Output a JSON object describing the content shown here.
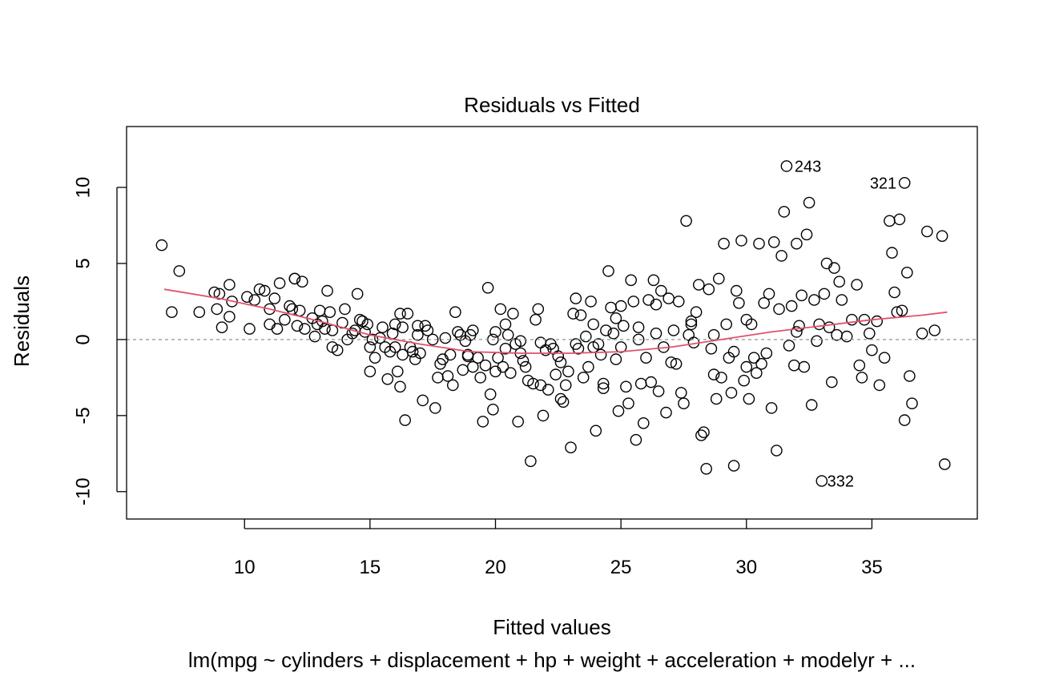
{
  "chart_data": {
    "type": "scatter",
    "title": "Residuals vs Fitted",
    "xlabel": "Fitted values",
    "ylabel": "Residuals",
    "subtitle": "lm(mpg ~ cylinders + displacement + hp + weight + acceleration + modelyr +  ...",
    "xlim": [
      5.3,
      39.2
    ],
    "ylim": [
      -11.8,
      14.0
    ],
    "x_ticks": [
      10,
      15,
      20,
      25,
      30,
      35
    ],
    "y_ticks": [
      -10,
      -5,
      0,
      5,
      10
    ],
    "zero_line": {
      "y": 0,
      "style": "dotted",
      "color": "#9a9a9a"
    },
    "smoother": {
      "color": "#df536b",
      "points": [
        [
          6.8,
          3.3
        ],
        [
          9,
          2.7
        ],
        [
          11,
          2.0
        ],
        [
          13,
          1.2
        ],
        [
          15,
          0.3
        ],
        [
          17,
          -0.3
        ],
        [
          19,
          -0.8
        ],
        [
          21,
          -0.9
        ],
        [
          23,
          -0.9
        ],
        [
          25,
          -0.8
        ],
        [
          27,
          -0.5
        ],
        [
          29,
          0.0
        ],
        [
          31,
          0.5
        ],
        [
          33,
          0.9
        ],
        [
          35,
          1.3
        ],
        [
          37,
          1.6
        ],
        [
          38,
          1.8
        ]
      ]
    },
    "labeled_points": [
      {
        "label": "243",
        "x": 31.6,
        "y": 11.4,
        "side": "right"
      },
      {
        "label": "321",
        "x": 36.3,
        "y": 10.3,
        "side": "left"
      },
      {
        "label": "332",
        "x": 32.9,
        "y": -9.3,
        "side": "right"
      }
    ],
    "points": [
      [
        6.7,
        6.2
      ],
      [
        7.1,
        1.8
      ],
      [
        7.4,
        4.5
      ],
      [
        8.2,
        1.8
      ],
      [
        8.8,
        3.1
      ],
      [
        8.9,
        2.0
      ],
      [
        9.0,
        3.0
      ],
      [
        9.1,
        0.8
      ],
      [
        9.4,
        3.6
      ],
      [
        9.4,
        1.5
      ],
      [
        9.5,
        2.5
      ],
      [
        10.1,
        2.8
      ],
      [
        10.2,
        0.7
      ],
      [
        10.4,
        2.6
      ],
      [
        10.6,
        3.3
      ],
      [
        10.8,
        3.2
      ],
      [
        11.0,
        2.0
      ],
      [
        11.0,
        1.0
      ],
      [
        11.2,
        2.7
      ],
      [
        11.3,
        0.7
      ],
      [
        11.4,
        3.7
      ],
      [
        11.6,
        1.3
      ],
      [
        11.8,
        2.2
      ],
      [
        11.9,
        2.0
      ],
      [
        12.0,
        4.0
      ],
      [
        12.0,
        4.0
      ],
      [
        12.1,
        0.9
      ],
      [
        12.2,
        1.9
      ],
      [
        12.3,
        3.8
      ],
      [
        12.4,
        0.7
      ],
      [
        12.7,
        1.4
      ],
      [
        12.8,
        0.2
      ],
      [
        12.9,
        1.0
      ],
      [
        13.0,
        1.9
      ],
      [
        13.1,
        1.2
      ],
      [
        13.2,
        0.7
      ],
      [
        13.3,
        3.2
      ],
      [
        13.4,
        1.8
      ],
      [
        13.5,
        0.6
      ],
      [
        13.5,
        -0.5
      ],
      [
        13.7,
        -0.7
      ],
      [
        13.9,
        1.1
      ],
      [
        14.0,
        2.0
      ],
      [
        14.1,
        0.0
      ],
      [
        14.3,
        0.4
      ],
      [
        14.4,
        0.6
      ],
      [
        14.5,
        3.0
      ],
      [
        14.6,
        1.3
      ],
      [
        14.8,
        0.5
      ],
      [
        14.9,
        1.0
      ],
      [
        15.0,
        -0.5
      ],
      [
        15.0,
        -2.1
      ],
      [
        15.1,
        0.0
      ],
      [
        15.2,
        -1.2
      ],
      [
        15.4,
        0.1
      ],
      [
        15.6,
        -0.5
      ],
      [
        15.7,
        -2.6
      ],
      [
        15.8,
        -0.8
      ],
      [
        15.9,
        0.4
      ],
      [
        16.0,
        1.0
      ],
      [
        16.0,
        -0.5
      ],
      [
        16.1,
        -2.1
      ],
      [
        16.2,
        -3.1
      ],
      [
        16.2,
        1.7
      ],
      [
        16.3,
        -1.0
      ],
      [
        16.3,
        0.8
      ],
      [
        16.4,
        -5.3
      ],
      [
        16.5,
        1.7
      ],
      [
        16.6,
        -0.5
      ],
      [
        16.7,
        -0.8
      ],
      [
        16.8,
        -1.3
      ],
      [
        16.9,
        0.9
      ],
      [
        17.0,
        -0.9
      ],
      [
        17.1,
        -4.0
      ],
      [
        17.2,
        0.9
      ],
      [
        17.3,
        0.6
      ],
      [
        17.6,
        -4.5
      ],
      [
        17.7,
        -2.5
      ],
      [
        17.8,
        -1.6
      ],
      [
        17.9,
        -1.3
      ],
      [
        18.0,
        0.1
      ],
      [
        18.1,
        -2.4
      ],
      [
        18.2,
        -1.0
      ],
      [
        18.3,
        -3.0
      ],
      [
        18.4,
        1.8
      ],
      [
        18.5,
        0.5
      ],
      [
        18.6,
        0.3
      ],
      [
        18.7,
        -2.0
      ],
      [
        18.8,
        -0.1
      ],
      [
        18.9,
        -1.0
      ],
      [
        19.0,
        0.3
      ],
      [
        19.1,
        -1.8
      ],
      [
        19.1,
        0.6
      ],
      [
        19.3,
        -1.2
      ],
      [
        19.4,
        -2.5
      ],
      [
        19.5,
        -5.4
      ],
      [
        19.6,
        -1.7
      ],
      [
        19.7,
        3.4
      ],
      [
        19.8,
        -3.6
      ],
      [
        19.9,
        -4.6
      ],
      [
        20.0,
        -2.1
      ],
      [
        20.0,
        0.5
      ],
      [
        20.1,
        -1.2
      ],
      [
        20.2,
        2.0
      ],
      [
        20.3,
        -1.8
      ],
      [
        20.4,
        -0.6
      ],
      [
        20.5,
        0.3
      ],
      [
        20.6,
        -2.2
      ],
      [
        20.7,
        1.7
      ],
      [
        20.8,
        -0.3
      ],
      [
        20.9,
        -5.4
      ],
      [
        21.0,
        -0.1
      ],
      [
        21.1,
        -1.4
      ],
      [
        21.2,
        -1.8
      ],
      [
        21.3,
        -2.7
      ],
      [
        21.4,
        -8.0
      ],
      [
        21.5,
        -2.9
      ],
      [
        21.6,
        1.3
      ],
      [
        21.7,
        2.0
      ],
      [
        21.8,
        -3.0
      ],
      [
        21.9,
        -5.0
      ],
      [
        22.0,
        -0.7
      ],
      [
        22.1,
        -3.3
      ],
      [
        22.2,
        -0.3
      ],
      [
        22.3,
        -0.6
      ],
      [
        22.4,
        -2.3
      ],
      [
        22.5,
        -1.1
      ],
      [
        22.6,
        -3.9
      ],
      [
        22.7,
        -4.1
      ],
      [
        22.8,
        -3.0
      ],
      [
        22.9,
        -2.1
      ],
      [
        23.0,
        -7.1
      ],
      [
        23.1,
        1.7
      ],
      [
        23.2,
        2.7
      ],
      [
        23.3,
        -0.6
      ],
      [
        23.4,
        1.6
      ],
      [
        23.5,
        -2.5
      ],
      [
        23.6,
        0.2
      ],
      [
        23.7,
        -1.8
      ],
      [
        23.8,
        2.5
      ],
      [
        23.9,
        -0.5
      ],
      [
        24.0,
        -6.0
      ],
      [
        24.1,
        -0.3
      ],
      [
        24.2,
        -1.0
      ],
      [
        24.3,
        -3.2
      ],
      [
        24.4,
        0.6
      ],
      [
        24.5,
        4.5
      ],
      [
        24.6,
        2.1
      ],
      [
        24.7,
        0.4
      ],
      [
        24.8,
        1.4
      ],
      [
        24.9,
        -4.7
      ],
      [
        25.0,
        2.2
      ],
      [
        25.1,
        0.9
      ],
      [
        25.2,
        -3.1
      ],
      [
        25.3,
        -4.2
      ],
      [
        25.4,
        3.9
      ],
      [
        25.5,
        2.5
      ],
      [
        25.6,
        -6.6
      ],
      [
        25.7,
        0.8
      ],
      [
        25.8,
        -2.9
      ],
      [
        25.9,
        -5.5
      ],
      [
        26.0,
        -1.2
      ],
      [
        26.1,
        2.6
      ],
      [
        26.2,
        -2.8
      ],
      [
        26.3,
        3.9
      ],
      [
        26.4,
        2.3
      ],
      [
        26.5,
        -3.4
      ],
      [
        26.6,
        3.2
      ],
      [
        26.7,
        -0.5
      ],
      [
        26.8,
        -4.8
      ],
      [
        26.9,
        2.7
      ],
      [
        27.0,
        -1.5
      ],
      [
        27.1,
        0.6
      ],
      [
        27.2,
        -1.6
      ],
      [
        27.3,
        2.5
      ],
      [
        27.4,
        -3.5
      ],
      [
        27.5,
        -4.2
      ],
      [
        27.6,
        7.8
      ],
      [
        27.7,
        0.3
      ],
      [
        27.8,
        1.0
      ],
      [
        27.9,
        -0.2
      ],
      [
        28.0,
        1.8
      ],
      [
        28.1,
        3.6
      ],
      [
        28.2,
        -6.3
      ],
      [
        28.3,
        -6.1
      ],
      [
        28.4,
        -8.5
      ],
      [
        28.5,
        3.3
      ],
      [
        28.6,
        -0.6
      ],
      [
        28.7,
        0.3
      ],
      [
        28.8,
        -3.9
      ],
      [
        28.9,
        4.0
      ],
      [
        29.0,
        -2.5
      ],
      [
        29.1,
        6.3
      ],
      [
        29.2,
        1.0
      ],
      [
        29.3,
        -1.2
      ],
      [
        29.4,
        -3.5
      ],
      [
        29.5,
        -8.3
      ],
      [
        29.6,
        3.2
      ],
      [
        29.7,
        2.4
      ],
      [
        29.8,
        6.5
      ],
      [
        29.9,
        -2.7
      ],
      [
        30.0,
        1.3
      ],
      [
        30.1,
        -3.9
      ],
      [
        30.2,
        1.0
      ],
      [
        30.3,
        -1.2
      ],
      [
        30.4,
        -2.2
      ],
      [
        30.5,
        6.3
      ],
      [
        30.6,
        -1.6
      ],
      [
        30.7,
        2.4
      ],
      [
        30.8,
        -0.9
      ],
      [
        30.9,
        3.0
      ],
      [
        31.0,
        -4.5
      ],
      [
        31.1,
        6.4
      ],
      [
        31.2,
        -7.3
      ],
      [
        31.3,
        2.0
      ],
      [
        31.4,
        5.5
      ],
      [
        31.5,
        8.4
      ],
      [
        31.6,
        11.4
      ],
      [
        31.7,
        -0.4
      ],
      [
        31.8,
        2.2
      ],
      [
        31.9,
        -1.7
      ],
      [
        32.0,
        6.3
      ],
      [
        32.1,
        0.9
      ],
      [
        32.2,
        2.9
      ],
      [
        32.3,
        -1.8
      ],
      [
        32.4,
        6.9
      ],
      [
        32.5,
        9.0
      ],
      [
        32.6,
        -4.3
      ],
      [
        32.7,
        2.6
      ],
      [
        32.8,
        -0.1
      ],
      [
        32.9,
        1.0
      ],
      [
        33.0,
        -9.3
      ],
      [
        33.1,
        3.0
      ],
      [
        33.2,
        5.0
      ],
      [
        33.3,
        0.8
      ],
      [
        33.4,
        -2.8
      ],
      [
        33.5,
        4.7
      ],
      [
        33.6,
        0.3
      ],
      [
        33.7,
        3.8
      ],
      [
        33.8,
        2.6
      ],
      [
        34.0,
        0.2
      ],
      [
        34.2,
        1.3
      ],
      [
        34.4,
        3.6
      ],
      [
        34.5,
        -1.7
      ],
      [
        34.6,
        -2.5
      ],
      [
        34.7,
        1.3
      ],
      [
        34.9,
        0.4
      ],
      [
        35.0,
        -0.7
      ],
      [
        35.2,
        1.2
      ],
      [
        35.3,
        -3.0
      ],
      [
        35.5,
        -1.2
      ],
      [
        35.7,
        7.8
      ],
      [
        35.8,
        5.7
      ],
      [
        35.9,
        3.1
      ],
      [
        36.0,
        1.8
      ],
      [
        36.1,
        7.9
      ],
      [
        36.2,
        1.9
      ],
      [
        36.3,
        10.3
      ],
      [
        36.3,
        -5.3
      ],
      [
        36.4,
        4.4
      ],
      [
        36.5,
        -2.4
      ],
      [
        36.6,
        -4.2
      ],
      [
        37.0,
        0.4
      ],
      [
        37.2,
        7.1
      ],
      [
        37.5,
        0.6
      ],
      [
        37.8,
        6.8
      ],
      [
        37.9,
        -8.2
      ],
      [
        24.3,
        -2.9
      ],
      [
        25.0,
        -0.5
      ],
      [
        21.8,
        -0.2
      ],
      [
        17.5,
        0.0
      ],
      [
        26.4,
        0.4
      ],
      [
        28.7,
        -2.3
      ],
      [
        30.0,
        -1.8
      ],
      [
        23.2,
        -0.3
      ],
      [
        19.9,
        0.0
      ],
      [
        22.6,
        -1.5
      ],
      [
        27.8,
        1.2
      ],
      [
        24.8,
        -1.3
      ],
      [
        16.9,
        0.3
      ],
      [
        20.4,
        1.0
      ],
      [
        29.5,
        -0.8
      ],
      [
        32.0,
        0.5
      ],
      [
        18.9,
        -1.1
      ],
      [
        21.0,
        -0.9
      ],
      [
        25.7,
        0.0
      ],
      [
        23.9,
        1.0
      ],
      [
        14.7,
        1.2
      ],
      [
        15.5,
        0.8
      ]
    ]
  }
}
